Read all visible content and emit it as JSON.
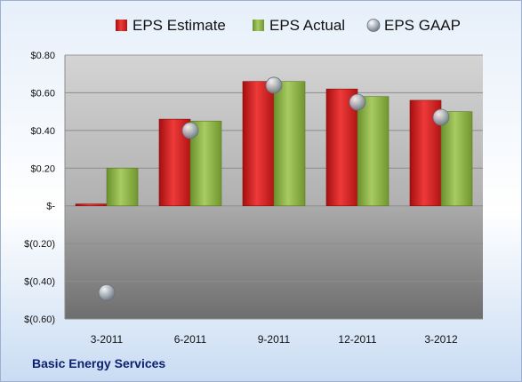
{
  "chart_data": {
    "type": "bar",
    "categories": [
      "3-2011",
      "6-2011",
      "9-2011",
      "12-2011",
      "3-2012"
    ],
    "series": [
      {
        "name": "EPS Estimate",
        "kind": "bar",
        "color": "#d21f1f",
        "values": [
          0.01,
          0.46,
          0.66,
          0.62,
          0.56
        ]
      },
      {
        "name": "EPS Actual",
        "kind": "bar",
        "color": "#8cb341",
        "values": [
          0.2,
          0.45,
          0.66,
          0.58,
          0.5
        ]
      },
      {
        "name": "EPS GAAP",
        "kind": "marker",
        "color": "#a9b4c0",
        "values": [
          -0.46,
          0.4,
          0.64,
          0.55,
          0.47
        ]
      }
    ],
    "ylim": [
      -0.6,
      0.8
    ],
    "yticks": [
      0.8,
      0.6,
      0.4,
      0.2,
      0,
      -0.2,
      -0.4,
      -0.6
    ],
    "ytick_labels": [
      "$0.80",
      "$0.60",
      "$0.40",
      "$0.20",
      "$-",
      "$(0.20)",
      "$(0.40)",
      "$(0.60)"
    ],
    "grid": true,
    "legend_position": "top"
  },
  "company": "Basic Energy Services"
}
